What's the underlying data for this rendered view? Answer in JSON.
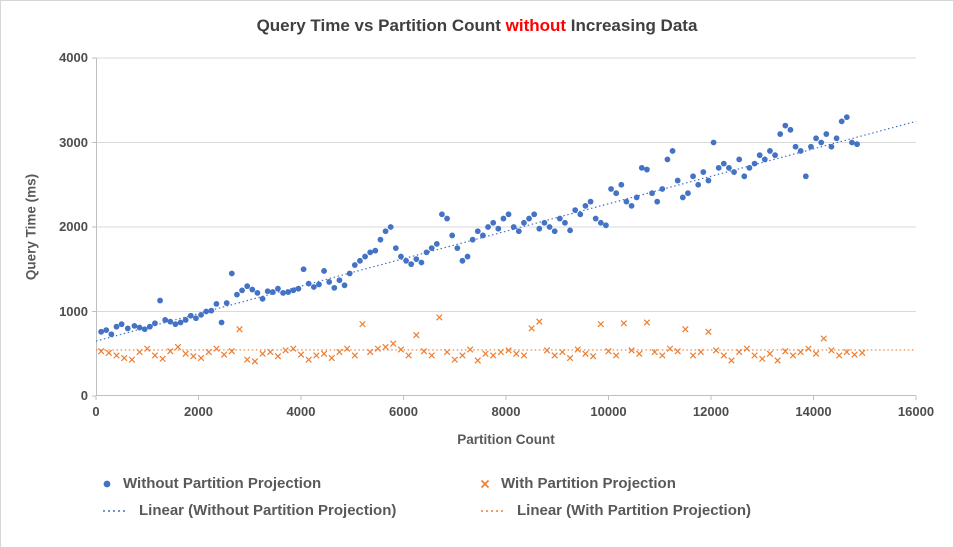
{
  "title": {
    "part1": "Query Time vs Partition Count ",
    "highlight": "without",
    "part2": " Increasing Data"
  },
  "colors": {
    "blue": "#4472C4",
    "orange": "#ED7D31",
    "red": "#FF0000",
    "grid": "#D9D9D9",
    "axis": "#BFBFBF"
  },
  "chart_data": {
    "type": "scatter",
    "title": "Query Time vs Partition Count without Increasing Data",
    "xlabel": "Partition Count",
    "ylabel": "Query Time (ms)",
    "xlim": [
      0,
      16000
    ],
    "ylim": [
      0,
      4000
    ],
    "x_ticks": [
      0,
      2000,
      4000,
      6000,
      8000,
      10000,
      12000,
      14000,
      16000
    ],
    "y_ticks": [
      0,
      1000,
      2000,
      3000,
      4000
    ],
    "grid": "horizontal",
    "legend_position": "bottom",
    "series": [
      {
        "name": "Without Partition Projection",
        "marker": "circle",
        "color": "#4472C4",
        "points": [
          [
            100,
            760
          ],
          [
            200,
            780
          ],
          [
            300,
            730
          ],
          [
            400,
            820
          ],
          [
            500,
            850
          ],
          [
            620,
            800
          ],
          [
            750,
            830
          ],
          [
            850,
            810
          ],
          [
            950,
            790
          ],
          [
            1050,
            820
          ],
          [
            1150,
            860
          ],
          [
            1250,
            1130
          ],
          [
            1350,
            900
          ],
          [
            1450,
            880
          ],
          [
            1550,
            850
          ],
          [
            1650,
            870
          ],
          [
            1750,
            900
          ],
          [
            1850,
            950
          ],
          [
            1950,
            920
          ],
          [
            2050,
            960
          ],
          [
            2150,
            1000
          ],
          [
            2250,
            1010
          ],
          [
            2350,
            1090
          ],
          [
            2450,
            870
          ],
          [
            2550,
            1100
          ],
          [
            2650,
            1450
          ],
          [
            2750,
            1200
          ],
          [
            2850,
            1250
          ],
          [
            2950,
            1300
          ],
          [
            3050,
            1260
          ],
          [
            3150,
            1220
          ],
          [
            3250,
            1150
          ],
          [
            3350,
            1240
          ],
          [
            3450,
            1230
          ],
          [
            3550,
            1270
          ],
          [
            3650,
            1220
          ],
          [
            3750,
            1230
          ],
          [
            3850,
            1250
          ],
          [
            3950,
            1270
          ],
          [
            4050,
            1500
          ],
          [
            4150,
            1330
          ],
          [
            4250,
            1290
          ],
          [
            4350,
            1320
          ],
          [
            4450,
            1480
          ],
          [
            4550,
            1350
          ],
          [
            4650,
            1280
          ],
          [
            4750,
            1370
          ],
          [
            4850,
            1310
          ],
          [
            4950,
            1450
          ],
          [
            5050,
            1550
          ],
          [
            5150,
            1600
          ],
          [
            5250,
            1650
          ],
          [
            5350,
            1700
          ],
          [
            5450,
            1720
          ],
          [
            5550,
            1850
          ],
          [
            5650,
            1950
          ],
          [
            5750,
            2000
          ],
          [
            5850,
            1750
          ],
          [
            5950,
            1650
          ],
          [
            6050,
            1600
          ],
          [
            6150,
            1560
          ],
          [
            6250,
            1620
          ],
          [
            6350,
            1580
          ],
          [
            6450,
            1700
          ],
          [
            6550,
            1750
          ],
          [
            6650,
            1800
          ],
          [
            6750,
            2150
          ],
          [
            6850,
            2100
          ],
          [
            6950,
            1900
          ],
          [
            7050,
            1750
          ],
          [
            7150,
            1600
          ],
          [
            7250,
            1650
          ],
          [
            7350,
            1850
          ],
          [
            7450,
            1950
          ],
          [
            7550,
            1900
          ],
          [
            7650,
            2000
          ],
          [
            7750,
            2050
          ],
          [
            7850,
            1980
          ],
          [
            7950,
            2100
          ],
          [
            8050,
            2150
          ],
          [
            8150,
            2000
          ],
          [
            8250,
            1950
          ],
          [
            8350,
            2050
          ],
          [
            8450,
            2100
          ],
          [
            8550,
            2150
          ],
          [
            8650,
            1980
          ],
          [
            8750,
            2050
          ],
          [
            8850,
            2000
          ],
          [
            8950,
            1950
          ],
          [
            9050,
            2100
          ],
          [
            9150,
            2050
          ],
          [
            9250,
            1960
          ],
          [
            9350,
            2200
          ],
          [
            9450,
            2150
          ],
          [
            9550,
            2250
          ],
          [
            9650,
            2300
          ],
          [
            9750,
            2100
          ],
          [
            9850,
            2050
          ],
          [
            9950,
            2020
          ],
          [
            10050,
            2450
          ],
          [
            10150,
            2400
          ],
          [
            10250,
            2500
          ],
          [
            10350,
            2300
          ],
          [
            10450,
            2250
          ],
          [
            10550,
            2350
          ],
          [
            10650,
            2700
          ],
          [
            10750,
            2680
          ],
          [
            10850,
            2400
          ],
          [
            10950,
            2300
          ],
          [
            11050,
            2450
          ],
          [
            11150,
            2800
          ],
          [
            11250,
            2900
          ],
          [
            11350,
            2550
          ],
          [
            11450,
            2350
          ],
          [
            11550,
            2400
          ],
          [
            11650,
            2600
          ],
          [
            11750,
            2500
          ],
          [
            11850,
            2650
          ],
          [
            11950,
            2550
          ],
          [
            12050,
            3000
          ],
          [
            12150,
            2700
          ],
          [
            12250,
            2750
          ],
          [
            12350,
            2700
          ],
          [
            12450,
            2650
          ],
          [
            12550,
            2800
          ],
          [
            12650,
            2600
          ],
          [
            12750,
            2700
          ],
          [
            12850,
            2750
          ],
          [
            12950,
            2850
          ],
          [
            13050,
            2800
          ],
          [
            13150,
            2900
          ],
          [
            13250,
            2850
          ],
          [
            13350,
            3100
          ],
          [
            13450,
            3200
          ],
          [
            13550,
            3150
          ],
          [
            13650,
            2950
          ],
          [
            13750,
            2900
          ],
          [
            13850,
            2600
          ],
          [
            13950,
            2950
          ],
          [
            14050,
            3050
          ],
          [
            14150,
            3000
          ],
          [
            14250,
            3100
          ],
          [
            14350,
            2950
          ],
          [
            14450,
            3050
          ],
          [
            14550,
            3250
          ],
          [
            14650,
            3300
          ],
          [
            14750,
            3000
          ],
          [
            14850,
            2980
          ]
        ]
      },
      {
        "name": "With Partition Projection",
        "marker": "x",
        "color": "#ED7D31",
        "points": [
          [
            100,
            530
          ],
          [
            250,
            510
          ],
          [
            400,
            480
          ],
          [
            550,
            450
          ],
          [
            700,
            430
          ],
          [
            850,
            520
          ],
          [
            1000,
            560
          ],
          [
            1150,
            480
          ],
          [
            1300,
            440
          ],
          [
            1450,
            530
          ],
          [
            1600,
            580
          ],
          [
            1750,
            500
          ],
          [
            1900,
            470
          ],
          [
            2050,
            450
          ],
          [
            2200,
            520
          ],
          [
            2350,
            560
          ],
          [
            2500,
            490
          ],
          [
            2650,
            530
          ],
          [
            2800,
            790
          ],
          [
            2950,
            430
          ],
          [
            3100,
            410
          ],
          [
            3250,
            500
          ],
          [
            3400,
            520
          ],
          [
            3550,
            470
          ],
          [
            3700,
            540
          ],
          [
            3850,
            560
          ],
          [
            4000,
            490
          ],
          [
            4150,
            430
          ],
          [
            4300,
            480
          ],
          [
            4450,
            500
          ],
          [
            4600,
            450
          ],
          [
            4750,
            520
          ],
          [
            4900,
            560
          ],
          [
            5050,
            480
          ],
          [
            5200,
            850
          ],
          [
            5350,
            520
          ],
          [
            5500,
            560
          ],
          [
            5650,
            580
          ],
          [
            5800,
            620
          ],
          [
            5950,
            550
          ],
          [
            6100,
            480
          ],
          [
            6250,
            720
          ],
          [
            6400,
            530
          ],
          [
            6550,
            480
          ],
          [
            6700,
            930
          ],
          [
            6850,
            520
          ],
          [
            7000,
            430
          ],
          [
            7150,
            480
          ],
          [
            7300,
            550
          ],
          [
            7450,
            420
          ],
          [
            7600,
            500
          ],
          [
            7750,
            480
          ],
          [
            7900,
            520
          ],
          [
            8050,
            540
          ],
          [
            8200,
            500
          ],
          [
            8350,
            480
          ],
          [
            8500,
            800
          ],
          [
            8650,
            880
          ],
          [
            8800,
            540
          ],
          [
            8950,
            480
          ],
          [
            9100,
            520
          ],
          [
            9250,
            450
          ],
          [
            9400,
            550
          ],
          [
            9550,
            500
          ],
          [
            9700,
            470
          ],
          [
            9850,
            850
          ],
          [
            10000,
            530
          ],
          [
            10150,
            480
          ],
          [
            10300,
            860
          ],
          [
            10450,
            540
          ],
          [
            10600,
            500
          ],
          [
            10750,
            870
          ],
          [
            10900,
            520
          ],
          [
            11050,
            480
          ],
          [
            11200,
            560
          ],
          [
            11350,
            530
          ],
          [
            11500,
            790
          ],
          [
            11650,
            480
          ],
          [
            11800,
            520
          ],
          [
            11950,
            760
          ],
          [
            12100,
            540
          ],
          [
            12250,
            480
          ],
          [
            12400,
            420
          ],
          [
            12550,
            520
          ],
          [
            12700,
            560
          ],
          [
            12850,
            480
          ],
          [
            13000,
            440
          ],
          [
            13150,
            500
          ],
          [
            13300,
            420
          ],
          [
            13450,
            530
          ],
          [
            13600,
            480
          ],
          [
            13750,
            520
          ],
          [
            13900,
            560
          ],
          [
            14050,
            500
          ],
          [
            14200,
            680
          ],
          [
            14350,
            540
          ],
          [
            14500,
            480
          ],
          [
            14650,
            520
          ],
          [
            14800,
            490
          ],
          [
            14950,
            510
          ]
        ]
      }
    ],
    "trendlines": [
      {
        "name": "Linear (Without Partition Projection)",
        "color": "#4472C4",
        "style": "dotted",
        "start": [
          0,
          650
        ],
        "end": [
          16000,
          3250
        ]
      },
      {
        "name": "Linear (With Partition Projection)",
        "color": "#ED7D31",
        "style": "dotted",
        "start": [
          0,
          545
        ],
        "end": [
          16000,
          545
        ]
      }
    ]
  }
}
